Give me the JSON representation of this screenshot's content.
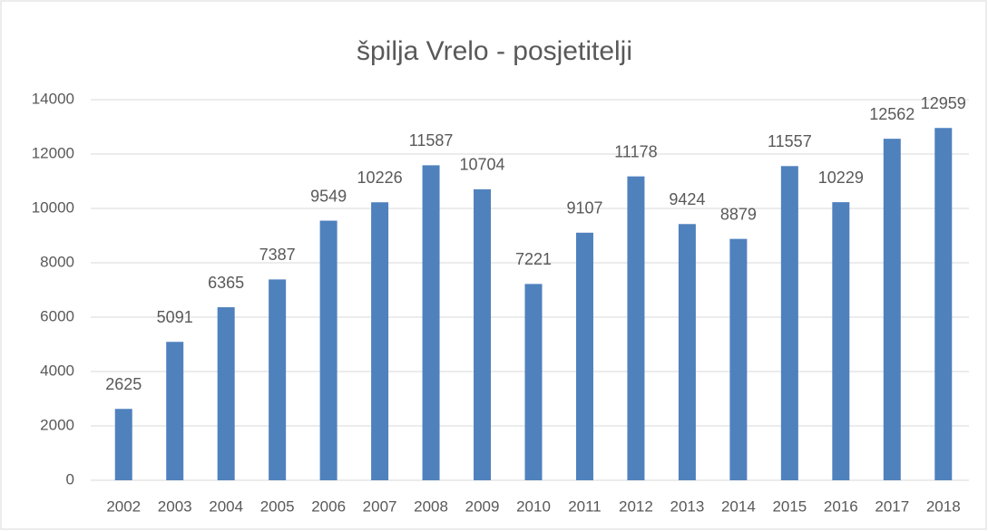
{
  "chart_data": {
    "type": "bar",
    "title": "špilja Vrelo - posjetitelji",
    "categories": [
      "2002",
      "2003",
      "2004",
      "2005",
      "2006",
      "2007",
      "2008",
      "2009",
      "2010",
      "2011",
      "2012",
      "2013",
      "2014",
      "2015",
      "2016",
      "2017",
      "2018"
    ],
    "values": [
      2625,
      5091,
      6365,
      7387,
      9549,
      10226,
      11587,
      10704,
      7221,
      9107,
      11178,
      9424,
      8879,
      11557,
      10229,
      12562,
      12959
    ],
    "color": "#4f81bd",
    "ylim": [
      0,
      14000
    ],
    "yticks": [
      0,
      2000,
      4000,
      6000,
      8000,
      10000,
      12000,
      14000
    ],
    "grid": true
  }
}
